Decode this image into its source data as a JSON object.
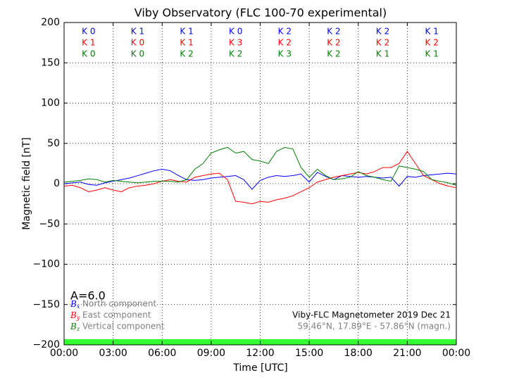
{
  "chart_data": {
    "type": "line",
    "title": "Viby Observatory (FLC 100-70 experimental)",
    "xlabel": "Time [UTC]",
    "ylabel": "Magnetic field [nT]",
    "x": [
      0,
      0.5,
      1,
      1.5,
      2,
      2.5,
      3,
      3.5,
      4,
      4.5,
      5,
      5.5,
      6,
      6.5,
      7,
      7.5,
      8,
      8.5,
      9,
      9.5,
      10,
      10.5,
      11,
      11.5,
      12,
      12.5,
      13,
      13.5,
      14,
      14.5,
      15,
      15.5,
      16,
      16.5,
      17,
      17.5,
      18,
      18.5,
      19,
      19.5,
      20,
      20.5,
      21,
      21.5,
      22,
      22.5,
      23,
      23.5,
      24
    ],
    "series": [
      {
        "name": "North component",
        "symbol": "B",
        "subscript": "x",
        "color": "#0000ff",
        "values": [
          0,
          1,
          2,
          -1,
          -2,
          1,
          3,
          5,
          7,
          10,
          13,
          16,
          18,
          16,
          10,
          5,
          4,
          5,
          7,
          8,
          9,
          10,
          5,
          -7,
          4,
          8,
          10,
          9,
          10,
          12,
          2,
          14,
          9,
          5,
          10,
          9,
          8,
          9,
          8,
          7,
          8,
          -3,
          9,
          8,
          10,
          11,
          12,
          13,
          12
        ]
      },
      {
        "name": "East component",
        "symbol": "B",
        "subscript": "y",
        "color": "#ff0000",
        "values": [
          -3,
          -2,
          -5,
          -10,
          -8,
          -5,
          -8,
          -10,
          -5,
          -3,
          -2,
          0,
          3,
          5,
          3,
          2,
          8,
          10,
          12,
          13,
          5,
          -22,
          -23,
          -25,
          -22,
          -23,
          -20,
          -18,
          -15,
          -10,
          -5,
          2,
          5,
          8,
          10,
          12,
          14,
          12,
          15,
          20,
          20,
          25,
          40,
          25,
          10,
          5,
          0,
          -3,
          -5
        ]
      },
      {
        "name": "Vertical component",
        "symbol": "B",
        "subscript": "z",
        "color": "#008000",
        "values": [
          2,
          3,
          4,
          6,
          5,
          2,
          4,
          3,
          2,
          1,
          2,
          3,
          3,
          3,
          2,
          5,
          18,
          25,
          38,
          42,
          45,
          38,
          40,
          30,
          28,
          25,
          40,
          45,
          43,
          20,
          8,
          18,
          10,
          5,
          6,
          8,
          15,
          10,
          8,
          5,
          3,
          22,
          20,
          18,
          15,
          5,
          3,
          1,
          -2
        ]
      }
    ],
    "k_rows": [
      {
        "color": "#0000ff",
        "labels": [
          "K 0",
          "K 1",
          "K 1",
          "K 0",
          "K 2",
          "K 2",
          "K 2",
          "K 1"
        ]
      },
      {
        "color": "#ff0000",
        "labels": [
          "K 1",
          "K 0",
          "K 1",
          "K 3",
          "K 2",
          "K 2",
          "K 2",
          "K 2"
        ]
      },
      {
        "color": "#008000",
        "labels": [
          "K 0",
          "K 0",
          "K 2",
          "K 2",
          "K 3",
          "K 2",
          "K 1",
          "K 1"
        ]
      }
    ],
    "activity": "A=6.0",
    "station": "Viby-FLC Magnetometer 2019 Dec 21",
    "location": "59.46°N, 17.89°E - 57.86°N (magn.)",
    "xlim": [
      0,
      24
    ],
    "xticks": [
      {
        "value": 0,
        "label": "00:00"
      },
      {
        "value": 3,
        "label": "03:00"
      },
      {
        "value": 6,
        "label": "06:00"
      },
      {
        "value": 9,
        "label": "09:00"
      },
      {
        "value": 12,
        "label": "12:00"
      },
      {
        "value": 15,
        "label": "15:00"
      },
      {
        "value": 18,
        "label": "18:00"
      },
      {
        "value": 21,
        "label": "21:00"
      },
      {
        "value": 24,
        "label": "00:00"
      }
    ],
    "ylim": [
      -200,
      200
    ],
    "yticks": [
      {
        "value": -200,
        "label": "−200"
      },
      {
        "value": -150,
        "label": "−150"
      },
      {
        "value": -100,
        "label": "−100"
      },
      {
        "value": -50,
        "label": "−50"
      },
      0,
      50,
      100,
      150,
      200
    ],
    "grid": true
  }
}
